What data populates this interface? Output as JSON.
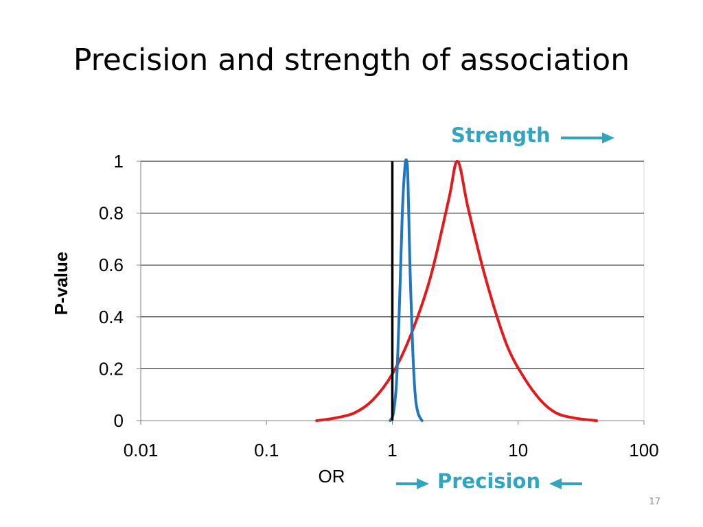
{
  "slide": {
    "title": "Precision and strength of association",
    "page_number": "17"
  },
  "annotations": {
    "strength": {
      "label": "Strength",
      "color": "#31a5c0",
      "arrow": "right"
    },
    "precision": {
      "label": "Precision",
      "color": "#31a5c0",
      "arrows": [
        "right",
        "left"
      ]
    }
  },
  "colors": {
    "red_series": "#e31a1c",
    "blue_series": "#1f77c0",
    "reference_line": "#000000",
    "grid": "#000000"
  },
  "chart_data": {
    "type": "line",
    "title": "",
    "xlabel": "OR",
    "ylabel": "P-value",
    "xscale": "log",
    "xlim": [
      0.01,
      100
    ],
    "ylim": [
      0,
      1
    ],
    "x_ticks": [
      0.01,
      0.1,
      1,
      10,
      100
    ],
    "x_tick_labels": [
      "0.01",
      "0.1",
      "1",
      "10",
      "100"
    ],
    "y_ticks": [
      0,
      0.2,
      0.4,
      0.6,
      0.8,
      1
    ],
    "y_tick_labels": [
      "0",
      "0.2",
      "0.4",
      "0.6",
      "0.8",
      "1"
    ],
    "grid": "horizontal",
    "reference_line": {
      "x": 1
    },
    "series": [
      {
        "color": "#e31a1c",
        "x": [
          0.25,
          0.35,
          0.5,
          0.7,
          1.0,
          1.4,
          2.0,
          2.8,
          3.3,
          4.0,
          5.5,
          8.0,
          11.0,
          15.0,
          20.0,
          28.0,
          42.0
        ],
        "y": [
          0.0,
          0.01,
          0.03,
          0.08,
          0.18,
          0.33,
          0.55,
          0.85,
          1.0,
          0.82,
          0.55,
          0.3,
          0.17,
          0.08,
          0.03,
          0.01,
          0.0
        ]
      },
      {
        "color": "#1f77c0",
        "x": [
          0.96,
          1.02,
          1.08,
          1.14,
          1.2,
          1.26,
          1.3,
          1.33,
          1.38,
          1.45,
          1.52,
          1.6,
          1.72
        ],
        "y": [
          0.0,
          0.03,
          0.15,
          0.45,
          0.8,
          0.98,
          1.0,
          0.93,
          0.6,
          0.28,
          0.1,
          0.03,
          0.0
        ]
      }
    ]
  }
}
